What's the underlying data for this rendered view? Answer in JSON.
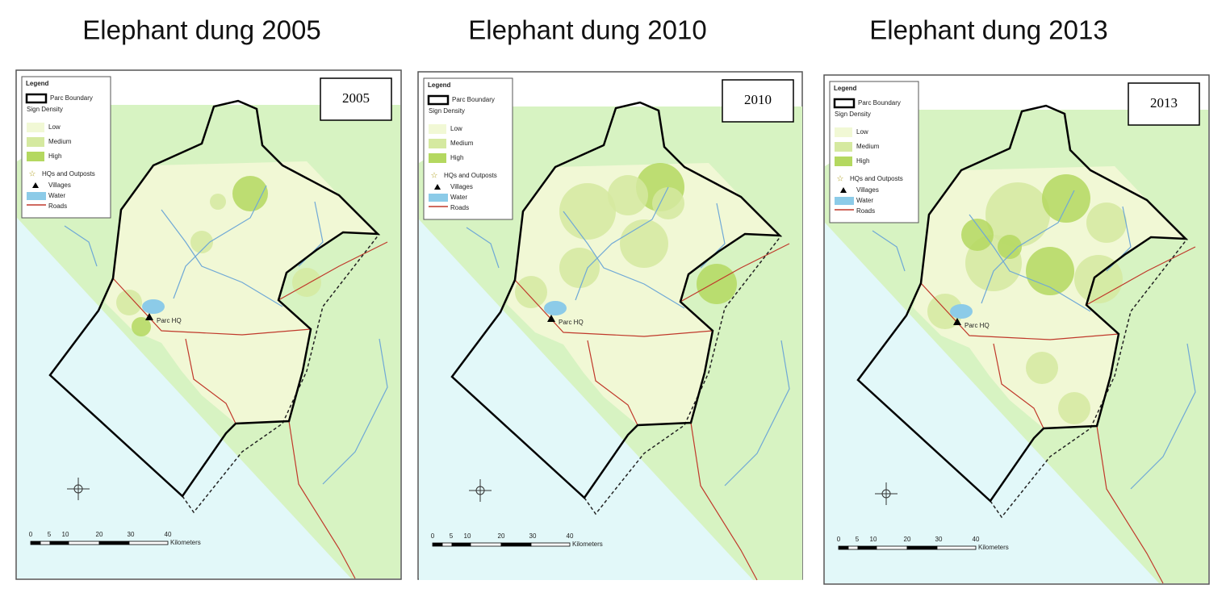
{
  "panels": [
    {
      "title": "Elephant dung 2005",
      "year_box": "2005",
      "legend": {
        "title": "Legend",
        "boundary": "Parc Boundary",
        "density_heading": "Sign Density",
        "low": "Low",
        "medium": "Medium",
        "high": "High",
        "hqs": "HQs and Outposts",
        "villages": "Villages",
        "water": "Water",
        "roads": "Roads"
      },
      "scale": {
        "ticks": [
          "0",
          "5",
          "10",
          "20",
          "30",
          "40"
        ],
        "unit": "Kilometers"
      },
      "place_label": "Parc HQ"
    },
    {
      "title": "Elephant dung 2010",
      "year_box": "2010",
      "legend": {
        "title": "Legend",
        "boundary": "Parc Boundary",
        "density_heading": "Sign Density",
        "low": "Low",
        "medium": "Medium",
        "high": "High",
        "hqs": "HQs and Outposts",
        "villages": "Villages",
        "water": "Water",
        "roads": "Roads"
      },
      "scale": {
        "ticks": [
          "0",
          "5",
          "10",
          "20",
          "30",
          "40"
        ],
        "unit": "Kilometers"
      },
      "place_label": "Parc HQ"
    },
    {
      "title": "Elephant dung 2013",
      "year_box": "2013",
      "legend": {
        "title": "Legend",
        "boundary": "Parc Boundary",
        "density_heading": "Sign Density",
        "low": "Low",
        "medium": "Medium",
        "high": "High",
        "hqs": "HQs and Outposts",
        "villages": "Villages",
        "water": "Water",
        "roads": "Roads"
      },
      "scale": {
        "ticks": [
          "0",
          "5",
          "10",
          "20",
          "30",
          "40"
        ],
        "unit": "Kilometers"
      },
      "place_label": "Parc HQ"
    }
  ]
}
